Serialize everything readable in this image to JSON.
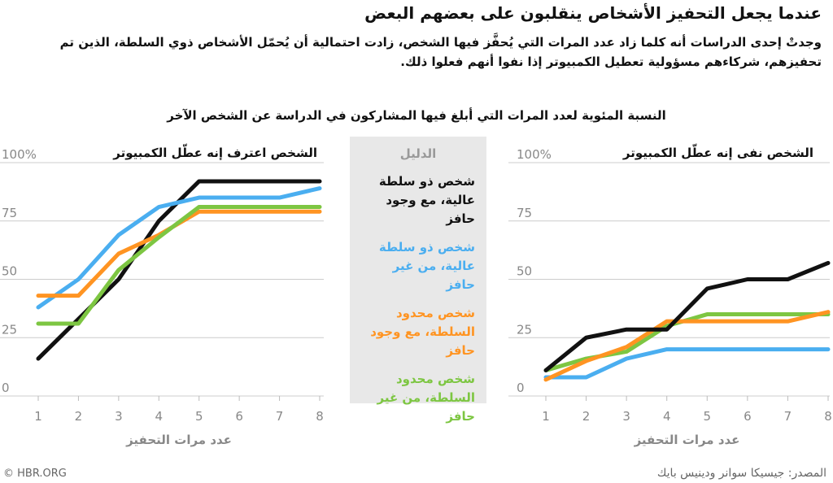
{
  "header": {
    "title": "عندما يجعل التحفيز الأشخاص ينقلبون على بعضهم البعض",
    "subtitle": "وجدتْ إحدى الدراسات أنه كلما زاد عدد المرات التي يُحفَّز فيها الشخص، زادت احتمالية أن يُحمّل الأشخاص ذوي السلطة، الذين تم تحفيزهم، شركاءهم مسؤولية تعطيل الكمبيوتر إذا نفوا أنهم فعلوا ذلك."
  },
  "legend": {
    "title": "الدليل",
    "items": [
      {
        "label": "شخص ذو سلطة عالية، مع وجود حافز",
        "color": "#111111"
      },
      {
        "label": "شخص ذو سلطة عالية، من غير حافز",
        "color": "#4aaef0"
      },
      {
        "label": "شخص محدود السلطة، مع وجود حافز",
        "color": "#ff9422"
      },
      {
        "label": "شخص محدود السلطة، من غير حافز",
        "color": "#7dc642"
      }
    ]
  },
  "footer": {
    "copyright": "© HBR.ORG",
    "source": "المصدر: جيسيكا سوانر ودينيس بايك"
  },
  "chart_data": [
    {
      "type": "line",
      "supertitle": "النسبة المئوية لعدد المرات التي أبلغ فيها المشاركون في الدراسة عن الشخص الآخر",
      "title": "الشخص اعترف إنه عطّل الكمبيوتر",
      "xlabel": "عدد مرات التحفيز",
      "x": [
        1,
        2,
        3,
        4,
        5,
        6,
        7,
        8
      ],
      "ylim": [
        0,
        100
      ],
      "yticks": [
        "0",
        "25",
        "50",
        "75",
        "100%"
      ],
      "series": [
        {
          "name": "شخص ذو سلطة عالية، مع وجود حافز",
          "color": "#111111",
          "values": [
            16,
            33,
            50,
            75,
            92,
            92,
            92,
            92
          ]
        },
        {
          "name": "شخص ذو سلطة عالية، من غير حافز",
          "color": "#4aaef0",
          "values": [
            38,
            50,
            69,
            81,
            85,
            85,
            85,
            89
          ]
        },
        {
          "name": "شخص محدود السلطة، مع وجود حافز",
          "color": "#ff9422",
          "values": [
            43,
            43,
            61,
            69,
            79,
            79,
            79,
            79
          ]
        },
        {
          "name": "شخص محدود السلطة، من غير حافز",
          "color": "#7dc642",
          "values": [
            31,
            31,
            54,
            68,
            81,
            81,
            81,
            81
          ]
        }
      ]
    },
    {
      "type": "line",
      "title": "الشخص نفى إنه عطّل الكمبيوتر",
      "xlabel": "عدد مرات التحفيز",
      "x": [
        1,
        2,
        3,
        4,
        5,
        6,
        7,
        8
      ],
      "ylim": [
        0,
        100
      ],
      "yticks": [
        "0",
        "25",
        "50",
        "75",
        "100%"
      ],
      "series": [
        {
          "name": "شخص ذو سلطة عالية، من غير حافز",
          "color": "#4aaef0",
          "values": [
            8,
            8,
            16,
            20,
            20,
            20,
            20,
            20
          ]
        },
        {
          "name": "شخص محدود السلطة، من غير حافز",
          "color": "#7dc642",
          "values": [
            11,
            16,
            19,
            30,
            35,
            35,
            35,
            35
          ]
        },
        {
          "name": "شخص محدود السلطة، مع وجود حافز",
          "color": "#ff9422",
          "values": [
            7,
            15,
            21,
            32,
            32,
            32,
            32,
            36
          ]
        },
        {
          "name": "شخص ذو سلطة عالية، مع وجود حافز",
          "color": "#111111",
          "values": [
            11,
            25,
            28.5,
            28.5,
            46,
            50,
            50,
            57
          ]
        }
      ]
    }
  ]
}
